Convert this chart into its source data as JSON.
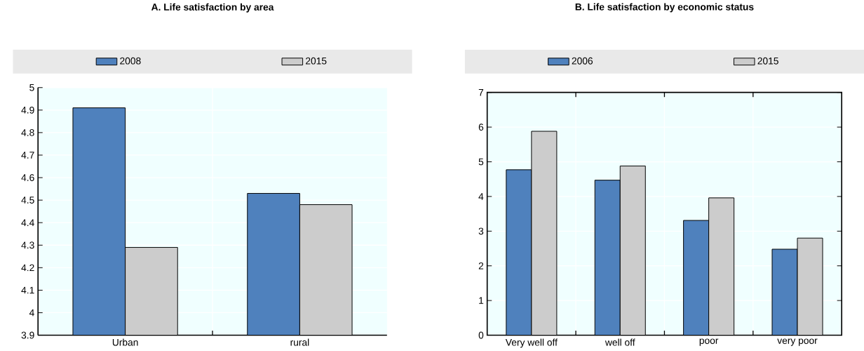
{
  "chart_data": [
    {
      "type": "bar",
      "title": "A. Life satisfaction by area",
      "categories": [
        "Urban",
        "rural"
      ],
      "series": [
        {
          "name": "2008",
          "color": "#4f81bd",
          "values": [
            4.91,
            4.53
          ]
        },
        {
          "name": "2015",
          "color": "#cccccc",
          "values": [
            4.29,
            4.48
          ]
        }
      ],
      "ylim": [
        3.9,
        5
      ],
      "yticks": [
        3.9,
        4,
        4.1,
        4.2,
        4.3,
        4.4,
        4.5,
        4.6,
        4.7,
        4.8,
        4.9,
        5
      ],
      "grid": true,
      "legend": "top"
    },
    {
      "type": "bar",
      "title": "B. Life satisfaction by economic status",
      "categories": [
        "Very well off",
        "well off",
        "poor",
        "very poor"
      ],
      "series": [
        {
          "name": "2006",
          "color": "#4f81bd",
          "values": [
            4.77,
            4.47,
            3.31,
            2.48
          ]
        },
        {
          "name": "2015",
          "color": "#cccccc",
          "values": [
            5.88,
            4.88,
            3.96,
            2.8
          ]
        }
      ],
      "ylim": [
        0,
        7
      ],
      "yticks": [
        0,
        1,
        2,
        3,
        4,
        5,
        6,
        7
      ],
      "grid": true,
      "legend": "top"
    }
  ]
}
